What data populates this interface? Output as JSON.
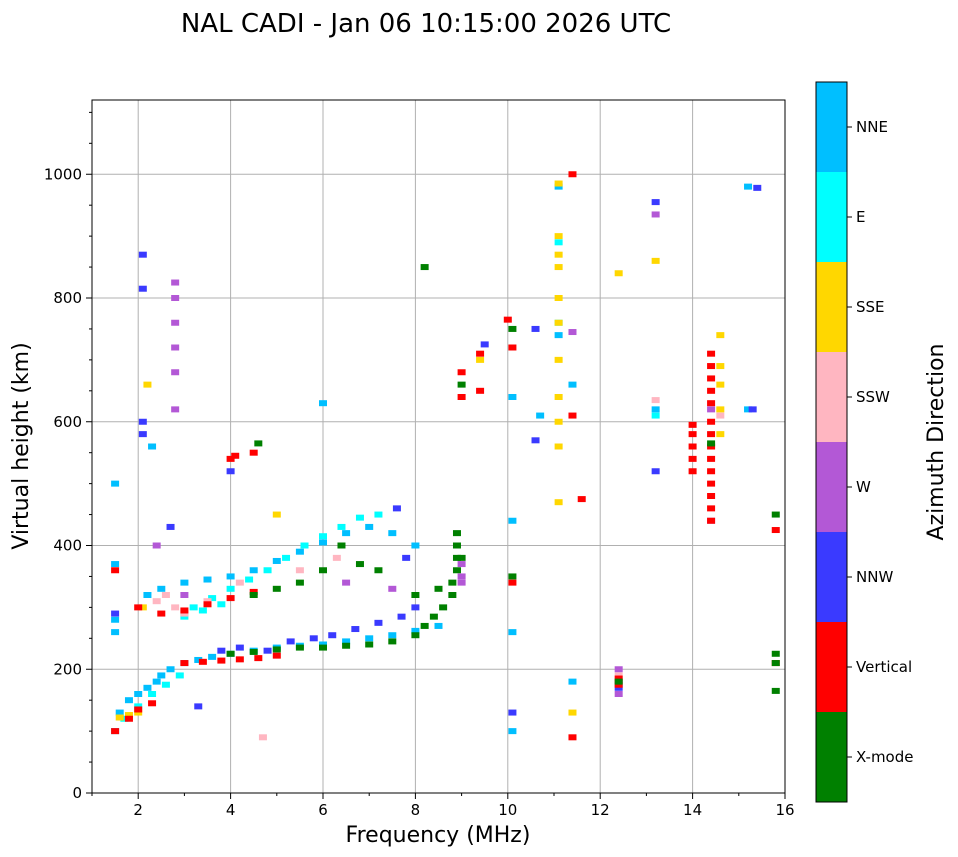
{
  "chart_data": {
    "type": "scatter",
    "title": "NAL CADI - Jan 06 10:15:00 2026 UTC",
    "xlabel": "Frequency (MHz)",
    "ylabel": "Virtual height (km)",
    "xlim": [
      1,
      16
    ],
    "ylim": [
      0,
      1120
    ],
    "xticks": [
      "2",
      "4",
      "6",
      "8",
      "10",
      "12",
      "14",
      "16"
    ],
    "yticks": [
      "0",
      "200",
      "400",
      "600",
      "800",
      "1000"
    ],
    "grid": true,
    "colorbar": {
      "label": "Azimuth Direction",
      "categories": [
        {
          "name": "X-mode",
          "color": "#008000"
        },
        {
          "name": "Vertical",
          "color": "#ff0000"
        },
        {
          "name": "NNW",
          "color": "#3a3aff"
        },
        {
          "name": "W",
          "color": "#b358d6"
        },
        {
          "name": "SSW",
          "color": "#ffb6c1"
        },
        {
          "name": "SSE",
          "color": "#ffd700"
        },
        {
          "name": "E",
          "color": "#00ffff"
        },
        {
          "name": "NNE",
          "color": "#00bfff"
        }
      ]
    },
    "traces": [
      {
        "category": "NNE",
        "points": [
          [
            1.5,
            100
          ],
          [
            1.6,
            130
          ],
          [
            1.8,
            150
          ],
          [
            2.0,
            160
          ],
          [
            2.2,
            170
          ],
          [
            2.4,
            180
          ],
          [
            2.5,
            190
          ],
          [
            2.7,
            200
          ],
          [
            3.0,
            210
          ],
          [
            3.3,
            215
          ],
          [
            3.6,
            220
          ],
          [
            4.0,
            225
          ],
          [
            4.5,
            230
          ],
          [
            5.0,
            235
          ],
          [
            5.5,
            238
          ],
          [
            6.0,
            240
          ],
          [
            6.5,
            245
          ],
          [
            7.0,
            250
          ],
          [
            7.5,
            255
          ],
          [
            8.0,
            262
          ],
          [
            8.5,
            270
          ],
          [
            1.5,
            260
          ],
          [
            1.5,
            280
          ],
          [
            1.5,
            370
          ],
          [
            1.5,
            500
          ],
          [
            2.2,
            320
          ],
          [
            2.5,
            330
          ],
          [
            3.0,
            340
          ],
          [
            3.5,
            345
          ],
          [
            4.0,
            350
          ],
          [
            4.5,
            360
          ],
          [
            5.0,
            375
          ],
          [
            5.5,
            390
          ],
          [
            6.0,
            405
          ],
          [
            6.5,
            420
          ],
          [
            7.0,
            430
          ],
          [
            7.5,
            420
          ],
          [
            8.0,
            400
          ],
          [
            2.3,
            560
          ],
          [
            6.0,
            630
          ],
          [
            10.1,
            100
          ],
          [
            10.1,
            260
          ],
          [
            10.1,
            440
          ],
          [
            10.1,
            640
          ],
          [
            10.7,
            610
          ],
          [
            11.1,
            740
          ],
          [
            11.1,
            980
          ],
          [
            11.4,
            660
          ],
          [
            11.4,
            180
          ],
          [
            13.2,
            620
          ],
          [
            15.2,
            620
          ],
          [
            15.2,
            980
          ]
        ]
      },
      {
        "category": "E",
        "points": [
          [
            1.7,
            120
          ],
          [
            2.0,
            140
          ],
          [
            2.3,
            160
          ],
          [
            2.6,
            175
          ],
          [
            2.9,
            190
          ],
          [
            3.2,
            300
          ],
          [
            3.6,
            315
          ],
          [
            4.0,
            330
          ],
          [
            4.4,
            345
          ],
          [
            4.8,
            360
          ],
          [
            5.2,
            380
          ],
          [
            5.6,
            400
          ],
          [
            6.0,
            415
          ],
          [
            6.4,
            430
          ],
          [
            6.8,
            445
          ],
          [
            7.2,
            450
          ],
          [
            3.0,
            285
          ],
          [
            3.4,
            295
          ],
          [
            3.8,
            305
          ],
          [
            11.1,
            890
          ],
          [
            11.1,
            760
          ],
          [
            13.2,
            610
          ]
        ]
      },
      {
        "category": "SSE",
        "points": [
          [
            1.6,
            122
          ],
          [
            1.8,
            126
          ],
          [
            2.0,
            130
          ],
          [
            2.1,
            300
          ],
          [
            2.2,
            660
          ],
          [
            5.0,
            450
          ],
          [
            11.1,
            470
          ],
          [
            11.1,
            560
          ],
          [
            11.1,
            600
          ],
          [
            11.1,
            640
          ],
          [
            11.1,
            700
          ],
          [
            11.1,
            760
          ],
          [
            11.1,
            800
          ],
          [
            11.1,
            850
          ],
          [
            11.1,
            870
          ],
          [
            11.1,
            900
          ],
          [
            11.1,
            985
          ],
          [
            12.4,
            840
          ],
          [
            13.2,
            860
          ],
          [
            14.6,
            580
          ],
          [
            14.6,
            620
          ],
          [
            14.6,
            660
          ],
          [
            14.6,
            690
          ],
          [
            14.6,
            740
          ],
          [
            11.4,
            130
          ],
          [
            9.4,
            700
          ]
        ]
      },
      {
        "category": "SSW",
        "points": [
          [
            2.4,
            310
          ],
          [
            2.6,
            320
          ],
          [
            2.8,
            300
          ],
          [
            3.0,
            290
          ],
          [
            3.5,
            310
          ],
          [
            4.2,
            340
          ],
          [
            5.5,
            360
          ],
          [
            6.3,
            380
          ],
          [
            13.2,
            635
          ],
          [
            12.4,
            190
          ],
          [
            14.6,
            610
          ],
          [
            4.7,
            90
          ]
        ]
      },
      {
        "category": "W",
        "points": [
          [
            2.8,
            620
          ],
          [
            2.8,
            680
          ],
          [
            2.8,
            720
          ],
          [
            2.8,
            760
          ],
          [
            2.8,
            800
          ],
          [
            2.8,
            825
          ],
          [
            2.4,
            400
          ],
          [
            9.0,
            370
          ],
          [
            9.0,
            350
          ],
          [
            9.0,
            340
          ],
          [
            6.5,
            340
          ],
          [
            7.5,
            330
          ],
          [
            12.4,
            160
          ],
          [
            12.4,
            180
          ],
          [
            12.4,
            200
          ],
          [
            14.4,
            620
          ],
          [
            14.4,
            440
          ],
          [
            3.0,
            320
          ],
          [
            11.4,
            745
          ],
          [
            13.2,
            935
          ]
        ]
      },
      {
        "category": "NNW",
        "points": [
          [
            1.5,
            290
          ],
          [
            2.1,
            600
          ],
          [
            2.1,
            870
          ],
          [
            2.1,
            815
          ],
          [
            2.1,
            580
          ],
          [
            2.7,
            430
          ],
          [
            3.3,
            140
          ],
          [
            3.8,
            230
          ],
          [
            4.2,
            235
          ],
          [
            4.8,
            230
          ],
          [
            5.3,
            245
          ],
          [
            5.8,
            250
          ],
          [
            6.2,
            255
          ],
          [
            6.7,
            265
          ],
          [
            7.2,
            275
          ],
          [
            7.7,
            285
          ],
          [
            8.0,
            300
          ],
          [
            7.8,
            380
          ],
          [
            7.6,
            460
          ],
          [
            10.1,
            130
          ],
          [
            10.6,
            750
          ],
          [
            10.6,
            570
          ],
          [
            12.4,
            170
          ],
          [
            13.2,
            520
          ],
          [
            13.2,
            955
          ],
          [
            15.3,
            620
          ],
          [
            15.4,
            978
          ],
          [
            4.0,
            520
          ],
          [
            9.5,
            725
          ]
        ]
      },
      {
        "category": "Vertical",
        "points": [
          [
            1.5,
            100
          ],
          [
            1.8,
            120
          ],
          [
            2.0,
            135
          ],
          [
            2.3,
            145
          ],
          [
            3.0,
            210
          ],
          [
            3.4,
            212
          ],
          [
            3.8,
            214
          ],
          [
            4.2,
            216
          ],
          [
            4.6,
            218
          ],
          [
            5.0,
            222
          ],
          [
            1.5,
            360
          ],
          [
            2.0,
            300
          ],
          [
            2.5,
            290
          ],
          [
            3.0,
            295
          ],
          [
            3.5,
            305
          ],
          [
            4.0,
            315
          ],
          [
            4.5,
            325
          ],
          [
            4.1,
            545
          ],
          [
            4.5,
            550
          ],
          [
            4.0,
            540
          ],
          [
            9.0,
            640
          ],
          [
            9.0,
            680
          ],
          [
            9.4,
            650
          ],
          [
            9.4,
            710
          ],
          [
            10.0,
            765
          ],
          [
            10.1,
            720
          ],
          [
            10.1,
            340
          ],
          [
            11.4,
            90
          ],
          [
            11.4,
            1000
          ],
          [
            11.4,
            610
          ],
          [
            11.6,
            475
          ],
          [
            14.0,
            595
          ],
          [
            14.0,
            580
          ],
          [
            14.0,
            560
          ],
          [
            14.0,
            540
          ],
          [
            14.0,
            520
          ],
          [
            14.4,
            710
          ],
          [
            14.4,
            690
          ],
          [
            14.4,
            670
          ],
          [
            14.4,
            650
          ],
          [
            14.4,
            630
          ],
          [
            14.4,
            600
          ],
          [
            14.4,
            580
          ],
          [
            14.4,
            560
          ],
          [
            14.4,
            540
          ],
          [
            14.4,
            520
          ],
          [
            14.4,
            500
          ],
          [
            14.4,
            480
          ],
          [
            14.4,
            460
          ],
          [
            14.4,
            440
          ],
          [
            15.8,
            425
          ],
          [
            15.8,
            210
          ],
          [
            12.4,
            185
          ],
          [
            12.4,
            175
          ]
        ]
      },
      {
        "category": "X-mode",
        "points": [
          [
            4.0,
            225
          ],
          [
            4.5,
            228
          ],
          [
            5.0,
            232
          ],
          [
            5.5,
            235
          ],
          [
            6.0,
            235
          ],
          [
            6.5,
            238
          ],
          [
            7.0,
            240
          ],
          [
            7.5,
            245
          ],
          [
            8.0,
            255
          ],
          [
            8.2,
            270
          ],
          [
            8.4,
            285
          ],
          [
            8.6,
            300
          ],
          [
            8.8,
            320
          ],
          [
            8.8,
            340
          ],
          [
            8.9,
            360
          ],
          [
            8.9,
            380
          ],
          [
            8.9,
            400
          ],
          [
            8.9,
            420
          ],
          [
            8.2,
            850
          ],
          [
            4.6,
            565
          ],
          [
            10.1,
            750
          ],
          [
            10.1,
            350
          ],
          [
            9.0,
            660
          ],
          [
            9.0,
            380
          ],
          [
            4.5,
            320
          ],
          [
            5.0,
            330
          ],
          [
            5.5,
            340
          ],
          [
            6.0,
            360
          ],
          [
            6.4,
            400
          ],
          [
            6.8,
            370
          ],
          [
            7.2,
            360
          ],
          [
            15.8,
            450
          ],
          [
            15.8,
            225
          ],
          [
            15.8,
            210
          ],
          [
            15.8,
            165
          ],
          [
            12.4,
            180
          ],
          [
            14.4,
            565
          ],
          [
            8.5,
            330
          ],
          [
            8.0,
            320
          ]
        ]
      }
    ]
  }
}
